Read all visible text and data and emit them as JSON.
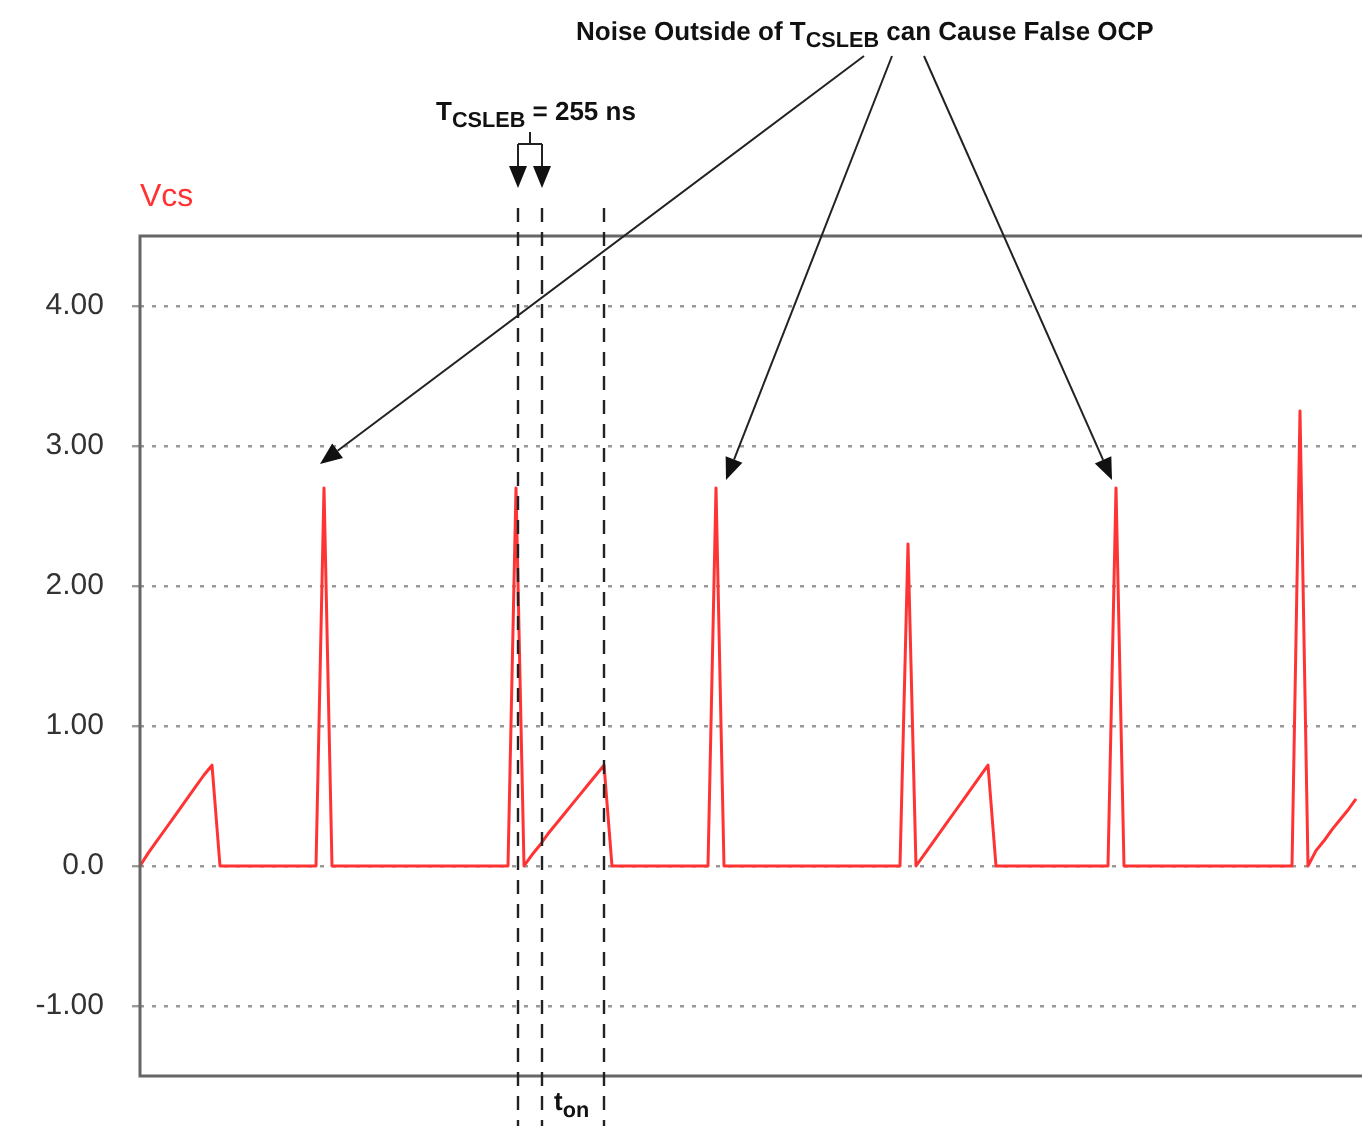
{
  "chart_data": {
    "type": "line",
    "ylabel": "Vcs",
    "annotations": [
      "Noise Outside of T$_{CSLEB}$ can Cause False OCP",
      "T$_{CSLEB}$ = 255 ns",
      "t$_{on}$"
    ],
    "categories": [
      null,
      null,
      null,
      null,
      null,
      null,
      null,
      null,
      null,
      null,
      null,
      null,
      null,
      null,
      null,
      null,
      null,
      null,
      null,
      null,
      null,
      null,
      null,
      null,
      null,
      null,
      null,
      null,
      null,
      null,
      null,
      null,
      null,
      null,
      null,
      null,
      null,
      null,
      null,
      null,
      null,
      null,
      null,
      null,
      null,
      null,
      null,
      null,
      null,
      null,
      null,
      null,
      null,
      null,
      null,
      null,
      null,
      null,
      null,
      null,
      null,
      null,
      null,
      null,
      null,
      null,
      null,
      null,
      null,
      null,
      null,
      null,
      null,
      null,
      null,
      null,
      null,
      null,
      null,
      null,
      null,
      null,
      null,
      null,
      null,
      null,
      null,
      null,
      null,
      null,
      null,
      null,
      null,
      null,
      null,
      null,
      null,
      null,
      null,
      null,
      null,
      null,
      null,
      null,
      null,
      null,
      null,
      null,
      null,
      null,
      null,
      null,
      null,
      null,
      null,
      null,
      null,
      null,
      null,
      null,
      null,
      null,
      null,
      null,
      null,
      null,
      null,
      null,
      null,
      null,
      null,
      null,
      null,
      null,
      null,
      null,
      null,
      null,
      null,
      null,
      null,
      null,
      null,
      null,
      null,
      null,
      null,
      null,
      null,
      null,
      null,
      null,
      null
    ],
    "series": [
      {
        "color": "#ff3333",
        "values": [
          0,
          0.09,
          0.17,
          0.25,
          0.33,
          0.41,
          0.49,
          0.57,
          0.65,
          0.72,
          0,
          0,
          0,
          0,
          0,
          0,
          0,
          0,
          0,
          0,
          0,
          0,
          0,
          2.7,
          0,
          0,
          0,
          0,
          0,
          0,
          0,
          0,
          0,
          0,
          0,
          0,
          0,
          0,
          0,
          0,
          0,
          0,
          0,
          0,
          0,
          0,
          0,
          2.7,
          0,
          0.08,
          0.15,
          0.23,
          0.3,
          0.37,
          0.44,
          0.51,
          0.58,
          0.65,
          0.72,
          0,
          0,
          0,
          0,
          0,
          0,
          0,
          0,
          0,
          0,
          0,
          0,
          0,
          2.7,
          0,
          0,
          0,
          0,
          0,
          0,
          0,
          0,
          0,
          0,
          0,
          0,
          0,
          0,
          0,
          0,
          0,
          0,
          0,
          0,
          0,
          0,
          0,
          2.3,
          0,
          0.08,
          0.16,
          0.24,
          0.32,
          0.4,
          0.48,
          0.56,
          0.64,
          0.72,
          0,
          0,
          0,
          0,
          0,
          0,
          0,
          0,
          0,
          0,
          0,
          0,
          0,
          0,
          0,
          2.7,
          0,
          0,
          0,
          0,
          0,
          0,
          0,
          0,
          0,
          0,
          0,
          0,
          0,
          0,
          0,
          0,
          0,
          0,
          0,
          0,
          0,
          0,
          3.25,
          0,
          0.11,
          0.18,
          0.26,
          0.33,
          0.4,
          0.48
        ]
      }
    ],
    "ylim": [
      -1.5,
      4.5
    ],
    "yticks": [
      {
        "value": -1,
        "label": "-1.00"
      },
      {
        "value": 0,
        "label": "0.0"
      },
      {
        "value": 1,
        "label": "1.00"
      },
      {
        "value": 2,
        "label": "2.00"
      },
      {
        "value": 3,
        "label": "3.00"
      },
      {
        "value": 4,
        "label": "4.00"
      }
    ],
    "grid": "y",
    "legend": false,
    "marker": "none",
    "line_style": "solid",
    "tick_labels": "y"
  }
}
